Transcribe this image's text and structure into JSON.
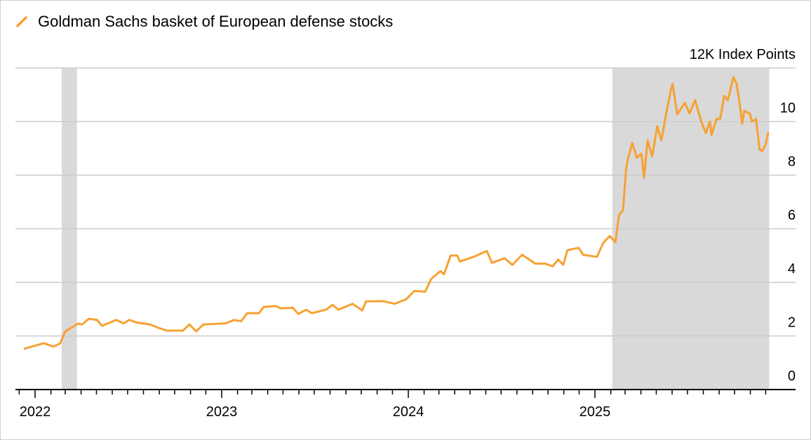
{
  "chart_data": {
    "type": "line",
    "title": "",
    "legend": {
      "position": "top-left",
      "entries": [
        "Goldman Sachs basket of European defense stocks"
      ]
    },
    "ylabel": "12K Index Points",
    "ylim": [
      0,
      12
    ],
    "yticks": [
      0,
      2,
      4,
      6,
      8,
      10
    ],
    "ytick_labels": [
      "0",
      "2",
      "4",
      "6",
      "8",
      "10"
    ],
    "xticks": [
      "2022",
      "2023",
      "2024",
      "2025"
    ],
    "grid": true,
    "colors": {
      "series": "#f7a133",
      "shade": "#d9d9d9",
      "grid": "#cccccc"
    },
    "shaded_periods": [
      [
        "2022-02-22",
        "2022-03-24"
      ],
      [
        "2025-02-04",
        "2025-12-08"
      ]
    ],
    "series": [
      {
        "name": "Goldman Sachs basket of European defense stocks",
        "x": [
          "2021-12-10",
          "2022-01-18",
          "2022-02-06",
          "2022-02-19",
          "2022-03-01",
          "2022-03-12",
          "2022-03-26",
          "2022-04-03",
          "2022-04-16",
          "2022-05-02",
          "2022-05-12",
          "2022-06-09",
          "2022-06-23",
          "2022-07-04",
          "2022-07-19",
          "2022-08-14",
          "2022-08-31",
          "2022-09-15",
          "2022-10-17",
          "2022-10-30",
          "2022-11-12",
          "2022-11-26",
          "2023-01-09",
          "2023-01-25",
          "2023-02-08",
          "2023-02-20",
          "2023-03-15",
          "2023-03-24",
          "2023-04-16",
          "2023-04-27",
          "2023-05-20",
          "2023-05-31",
          "2023-06-15",
          "2023-06-26",
          "2023-07-24",
          "2023-08-06",
          "2023-08-17",
          "2023-09-14",
          "2023-10-03",
          "2023-10-10",
          "2023-11-13",
          "2023-12-05",
          "2023-12-28",
          "2024-01-13",
          "2024-02-03",
          "2024-02-15",
          "2024-03-04",
          "2024-03-11",
          "2024-03-24",
          "2024-04-06",
          "2024-04-11",
          "2024-05-08",
          "2024-06-03",
          "2024-06-13",
          "2024-07-08",
          "2024-07-23",
          "2024-08-11",
          "2024-09-06",
          "2024-09-25",
          "2024-10-10",
          "2024-10-21",
          "2024-10-31",
          "2024-11-08",
          "2024-11-30",
          "2024-12-09",
          "2025-01-05",
          "2025-01-17",
          "2025-01-30",
          "2025-02-10",
          "2025-02-17",
          "2025-02-25",
          "2025-03-03",
          "2025-03-06",
          "2025-03-15",
          "2025-03-24",
          "2025-04-02",
          "2025-04-07",
          "2025-04-14",
          "2025-04-23",
          "2025-05-03",
          "2025-05-11",
          "2025-05-21",
          "2025-05-29",
          "2025-06-02",
          "2025-06-11",
          "2025-06-26",
          "2025-07-05",
          "2025-07-16",
          "2025-07-28",
          "2025-08-06",
          "2025-08-14",
          "2025-08-17",
          "2025-08-27",
          "2025-09-03",
          "2025-09-11",
          "2025-09-18",
          "2025-09-29",
          "2025-10-05",
          "2025-10-11",
          "2025-10-16",
          "2025-10-20",
          "2025-10-31",
          "2025-11-04",
          "2025-11-12",
          "2025-11-19",
          "2025-11-24",
          "2025-12-01",
          "2025-12-06"
        ],
        "y": [
          1.52,
          1.73,
          1.6,
          1.72,
          2.17,
          2.3,
          2.46,
          2.43,
          2.64,
          2.6,
          2.38,
          2.6,
          2.47,
          2.6,
          2.5,
          2.43,
          2.3,
          2.2,
          2.2,
          2.43,
          2.17,
          2.43,
          2.47,
          2.6,
          2.55,
          2.85,
          2.85,
          3.08,
          3.12,
          3.03,
          3.05,
          2.82,
          2.98,
          2.85,
          2.98,
          3.16,
          2.98,
          3.2,
          2.95,
          3.29,
          3.3,
          3.2,
          3.37,
          3.68,
          3.65,
          4.13,
          4.42,
          4.3,
          5.0,
          5.0,
          4.78,
          4.95,
          5.17,
          4.73,
          4.9,
          4.65,
          5.03,
          4.7,
          4.7,
          4.6,
          4.85,
          4.65,
          5.2,
          5.29,
          5.03,
          4.95,
          5.47,
          5.73,
          5.5,
          6.5,
          6.7,
          8.25,
          8.55,
          9.2,
          8.65,
          8.8,
          7.9,
          9.3,
          8.7,
          9.83,
          9.3,
          10.35,
          11.14,
          11.4,
          10.27,
          10.7,
          10.3,
          10.8,
          10.0,
          9.57,
          10.0,
          9.5,
          10.1,
          10.1,
          10.96,
          10.8,
          11.66,
          11.4,
          10.7,
          9.92,
          10.4,
          10.3,
          10.0,
          10.1,
          8.96,
          8.9,
          9.15,
          9.6
        ]
      }
    ]
  }
}
